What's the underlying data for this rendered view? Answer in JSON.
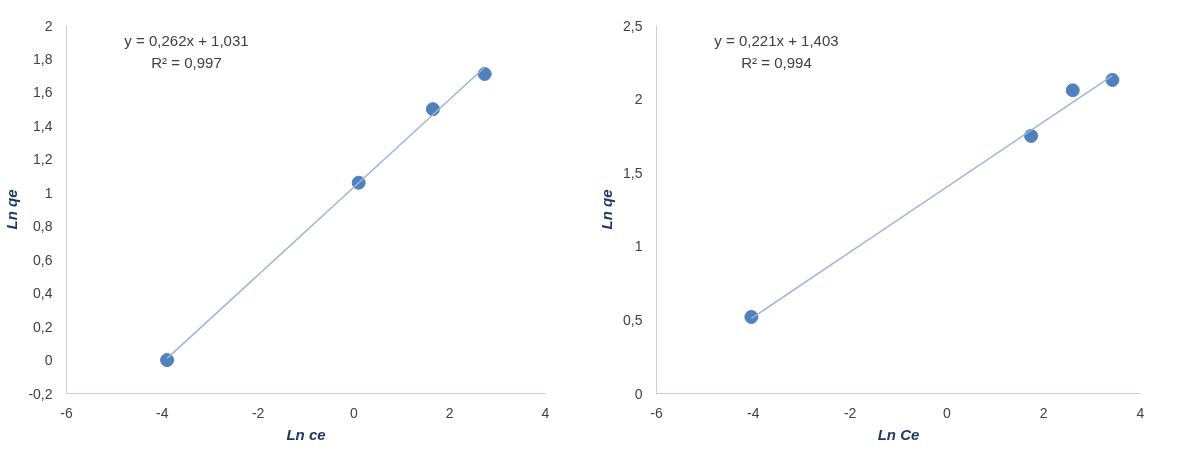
{
  "chart_data": [
    {
      "type": "scatter",
      "xlabel": "Ln ce",
      "ylabel": "Ln qe",
      "annotations": [
        "y = 0,262x + 1,031",
        "R² = 0,997"
      ],
      "xlim": [
        -6,
        4
      ],
      "xticks": [
        -6,
        -4,
        -2,
        0,
        2,
        4
      ],
      "ylim": [
        -0.2,
        2
      ],
      "yticks": [
        {
          "value": -0.2,
          "label": "-0,2"
        },
        0,
        {
          "value": 0.2,
          "label": "0,2"
        },
        {
          "value": 0.4,
          "label": "0,4"
        },
        {
          "value": 0.6,
          "label": "0,6"
        },
        {
          "value": 0.8,
          "label": "0,8"
        },
        1,
        {
          "value": 1.2,
          "label": "1,2"
        },
        {
          "value": 1.4,
          "label": "1,4"
        },
        {
          "value": 1.6,
          "label": "1,6"
        },
        {
          "value": 1.8,
          "label": "1,8"
        },
        2
      ],
      "grid": false,
      "series": [
        {
          "color": "#4f81bd",
          "marker": "circle",
          "x": [
            -3.9,
            0.1,
            1.65,
            2.73
          ],
          "values": [
            0.0,
            1.06,
            1.5,
            1.71
          ]
        },
        {
          "type": "line",
          "color": "#9fb4d8",
          "x": [
            -3.9,
            2.73
          ],
          "values": [
            0.01,
            1.75
          ]
        }
      ]
    },
    {
      "type": "scatter",
      "xlabel": "Ln Ce",
      "ylabel": "Ln qe",
      "annotations": [
        "y = 0,221x + 1,403",
        "R² = 0,994"
      ],
      "xlim": [
        -6,
        4
      ],
      "xticks": [
        -6,
        -4,
        -2,
        0,
        2,
        4
      ],
      "ylim": [
        0,
        2.5
      ],
      "yticks": [
        0,
        {
          "value": 0.5,
          "label": "0,5"
        },
        1,
        {
          "value": 1.5,
          "label": "1,5"
        },
        2,
        {
          "value": 2.5,
          "label": "2,5"
        }
      ],
      "grid": false,
      "series": [
        {
          "color": "#4f81bd",
          "marker": "circle",
          "x": [
            -4.04,
            1.74,
            2.6,
            3.42
          ],
          "values": [
            0.52,
            1.75,
            2.06,
            2.13
          ]
        },
        {
          "type": "line",
          "color": "#9fb4d8",
          "x": [
            -4.04,
            3.42
          ],
          "values": [
            0.51,
            2.16
          ]
        }
      ]
    }
  ]
}
